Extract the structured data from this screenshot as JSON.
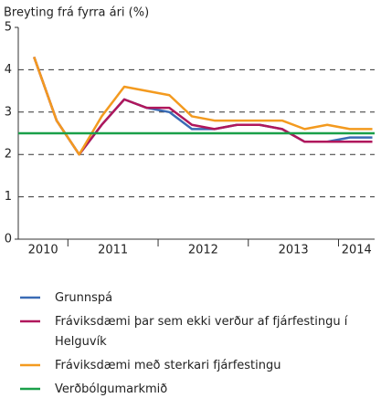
{
  "chart_data": {
    "type": "line",
    "title": "Breyting frá fyrra ári (%)",
    "x": [
      2010.625,
      2010.875,
      2011.125,
      2011.375,
      2011.625,
      2011.875,
      2012.125,
      2012.375,
      2012.625,
      2012.875,
      2013.125,
      2013.375,
      2013.625,
      2013.875,
      2014.125,
      2014.375
    ],
    "series": [
      {
        "name": "Grunnspá",
        "color": "#3a6bb5",
        "values": [
          4.3,
          2.8,
          2.0,
          2.7,
          3.3,
          3.1,
          3.0,
          2.6,
          2.6,
          2.7,
          2.7,
          2.6,
          2.3,
          2.3,
          2.4,
          2.4
        ]
      },
      {
        "name": "Fráviksdæmi þar sem ekki verður af fjárfestingu í Helguvík",
        "color": "#b0175c",
        "values": [
          4.3,
          2.8,
          2.0,
          2.7,
          3.3,
          3.1,
          3.1,
          2.7,
          2.6,
          2.7,
          2.7,
          2.6,
          2.3,
          2.3,
          2.3,
          2.3
        ]
      },
      {
        "name": "Fráviksdæmi með sterkari fjárfestingu",
        "color": "#f39a1f",
        "values": [
          4.3,
          2.8,
          2.0,
          2.9,
          3.6,
          3.5,
          3.4,
          2.9,
          2.8,
          2.8,
          2.8,
          2.8,
          2.6,
          2.7,
          2.6,
          2.6
        ]
      },
      {
        "name": "Verðbólgumarkmið",
        "color": "#1aa04a",
        "x": [
          2010.45,
          2014.4
        ],
        "values": [
          2.5,
          2.5
        ]
      }
    ],
    "year_labels": [
      "2010",
      "2011",
      "2012",
      "2013",
      "2014"
    ],
    "xlim": [
      2010.45,
      2014.4
    ],
    "xticks": [
      2011,
      2012,
      2013,
      2014
    ],
    "ylim": [
      0,
      5
    ],
    "yticks": [
      0,
      1,
      2,
      3,
      4,
      5
    ],
    "grid": true
  }
}
